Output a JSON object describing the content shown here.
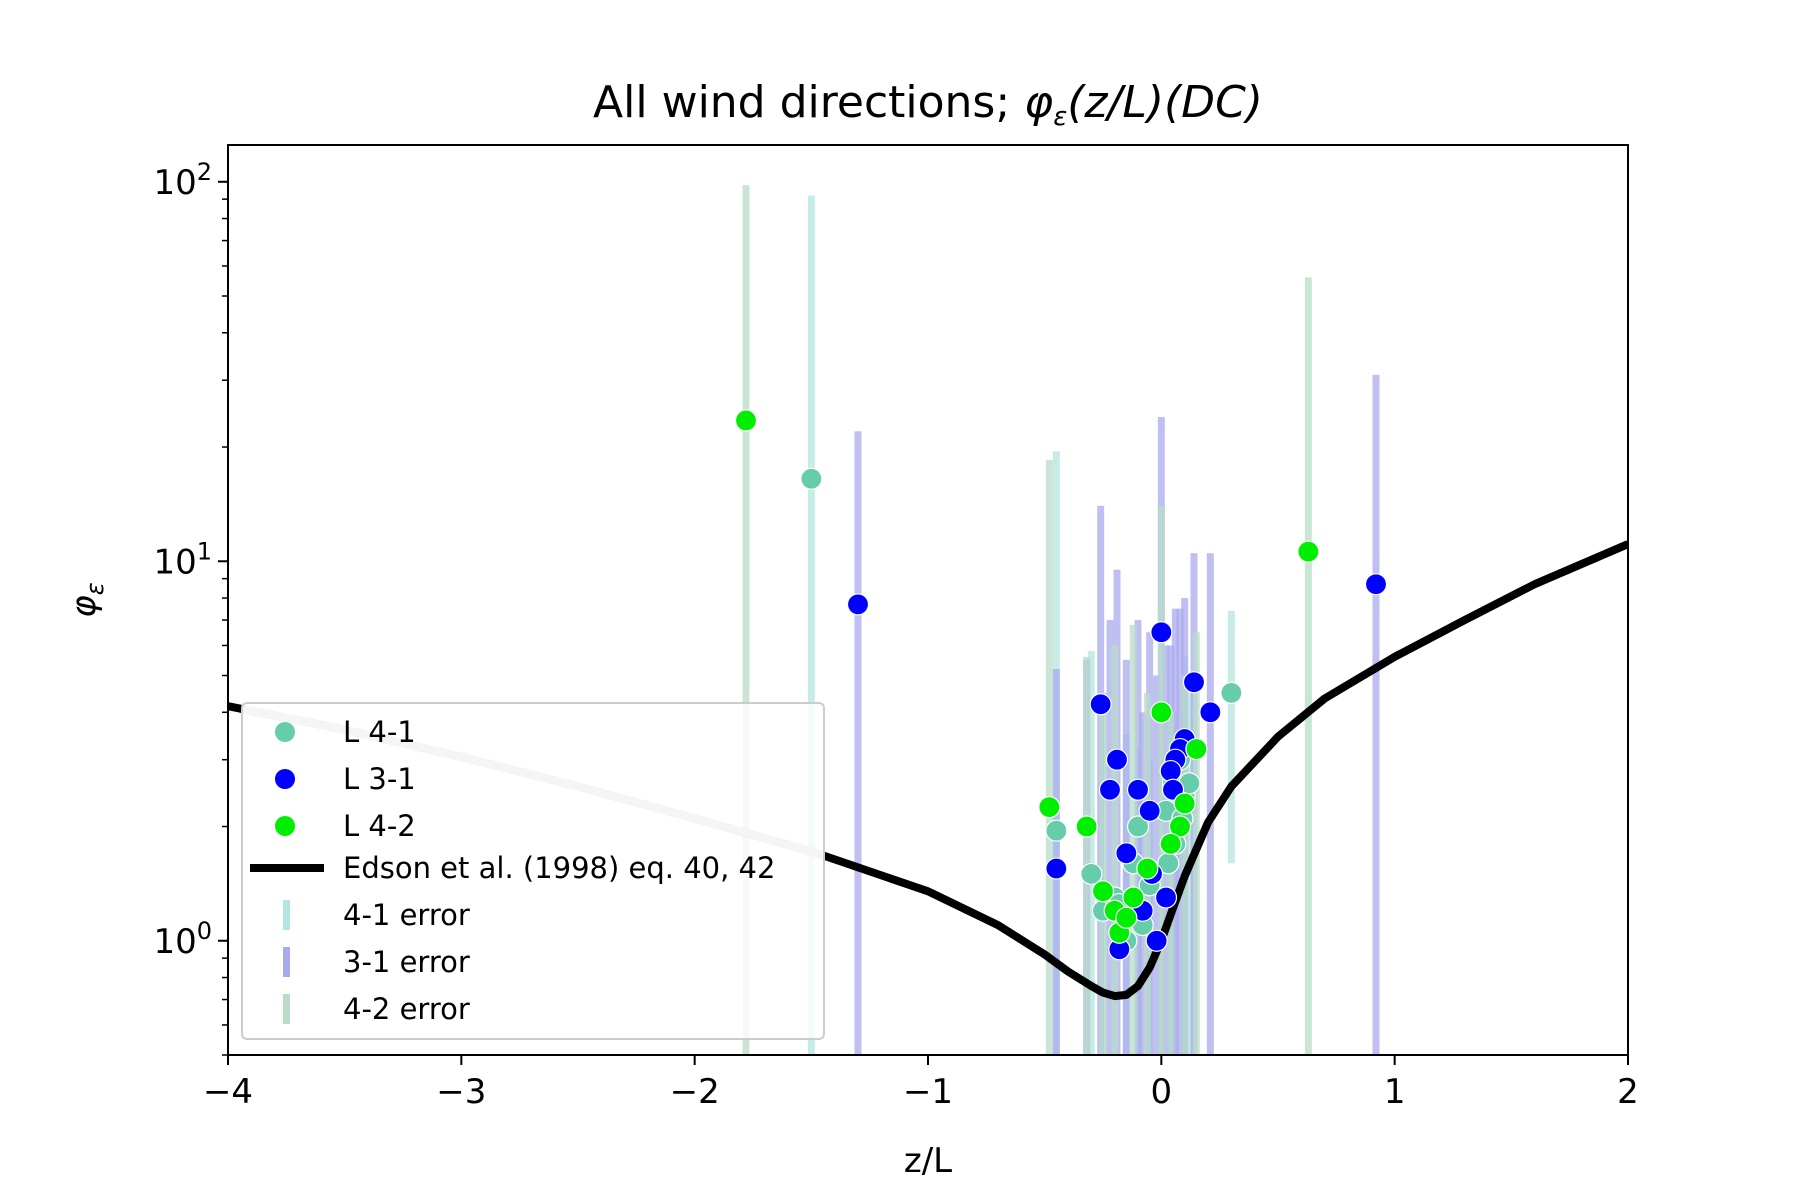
{
  "chart_data": {
    "type": "scatter",
    "title": "All wind directions; ",
    "title_math": "φ",
    "title_math_sub": "ε",
    "title_math_rest": "(z/L)(DC)",
    "xlabel": "z/L",
    "ylabel": "φ",
    "ylabel_sub": "ε",
    "xlim": [
      -4,
      2
    ],
    "ylim": [
      0.5,
      125
    ],
    "yscale": "log",
    "x_ticks": [
      {
        "value": -4,
        "label": "−4"
      },
      {
        "value": -3,
        "label": "−3"
      },
      {
        "value": -2,
        "label": "−2"
      },
      {
        "value": -1,
        "label": "−1"
      },
      {
        "value": 0,
        "label": "0"
      },
      {
        "value": 1,
        "label": "1"
      },
      {
        "value": 2,
        "label": "2"
      }
    ],
    "y_ticks": [
      {
        "value": 1,
        "base": "10",
        "exp": "0"
      },
      {
        "value": 10,
        "base": "10",
        "exp": "1"
      },
      {
        "value": 100,
        "base": "10",
        "exp": "2"
      }
    ],
    "grid": false,
    "legend_placement": "lower-left",
    "series": [
      {
        "name": "L 4-1",
        "color": "#66cdaa",
        "points": [
          [
            -1.5,
            16.5
          ],
          [
            0.3,
            4.5
          ],
          [
            -0.45,
            1.95
          ],
          [
            -0.3,
            1.5
          ],
          [
            -0.25,
            1.2
          ],
          [
            -0.2,
            1.3
          ],
          [
            -0.15,
            1.0
          ],
          [
            -0.1,
            2.0
          ],
          [
            -0.08,
            1.1
          ],
          [
            -0.05,
            1.4
          ],
          [
            0.02,
            2.2
          ],
          [
            0.05,
            2.6
          ],
          [
            0.08,
            3.0
          ],
          [
            0.1,
            2.4
          ],
          [
            0.12,
            2.6
          ],
          [
            0.06,
            1.8
          ],
          [
            0.03,
            1.6
          ],
          [
            -0.12,
            1.6
          ],
          [
            -0.18,
            1.25
          ],
          [
            0.09,
            2.1
          ]
        ]
      },
      {
        "name": "L 3-1",
        "color": "#0000ff",
        "points": [
          [
            -1.3,
            7.7
          ],
          [
            0.92,
            8.7
          ],
          [
            0.0,
            6.5
          ],
          [
            0.14,
            4.8
          ],
          [
            0.21,
            4.0
          ],
          [
            -0.26,
            4.2
          ],
          [
            -0.19,
            3.0
          ],
          [
            -0.22,
            2.5
          ],
          [
            -0.1,
            2.5
          ],
          [
            -0.45,
            1.55
          ],
          [
            -0.15,
            1.7
          ],
          [
            0.1,
            3.4
          ],
          [
            0.08,
            3.2
          ],
          [
            0.06,
            3.0
          ],
          [
            0.04,
            2.8
          ],
          [
            -0.05,
            2.2
          ],
          [
            -0.18,
            0.95
          ],
          [
            -0.02,
            1.0
          ],
          [
            0.02,
            1.3
          ],
          [
            -0.08,
            1.2
          ],
          [
            0.05,
            2.5
          ],
          [
            -0.04,
            1.5
          ]
        ]
      },
      {
        "name": "L 4-2",
        "color": "#00ee00",
        "points": [
          [
            -1.78,
            23.5
          ],
          [
            0.63,
            10.6
          ],
          [
            -0.48,
            2.25
          ],
          [
            -0.32,
            2.0
          ],
          [
            0.0,
            4.0
          ],
          [
            0.15,
            3.2
          ],
          [
            -0.25,
            1.35
          ],
          [
            -0.2,
            1.2
          ],
          [
            -0.18,
            1.05
          ],
          [
            -0.12,
            1.3
          ],
          [
            0.1,
            2.3
          ],
          [
            0.08,
            2.0
          ],
          [
            -0.06,
            1.55
          ],
          [
            0.04,
            1.8
          ],
          [
            -0.15,
            1.15
          ]
        ]
      }
    ],
    "error_bars": [
      {
        "name": "4-1 error",
        "color": "#b3e6e0",
        "bars": [
          [
            -1.5,
            0.5,
            92
          ],
          [
            0.3,
            1.6,
            7.4
          ],
          [
            -0.45,
            0.5,
            19.5
          ],
          [
            -0.3,
            0.5,
            5.8
          ],
          [
            -0.25,
            0.5,
            4.5
          ],
          [
            -0.15,
            0.5,
            3.5
          ],
          [
            -0.1,
            0.5,
            3.2
          ],
          [
            0.05,
            0.5,
            4.0
          ],
          [
            0.1,
            0.5,
            5.6
          ],
          [
            0.12,
            0.5,
            4.5
          ],
          [
            -0.05,
            0.5,
            3.0
          ]
        ]
      },
      {
        "name": "3-1 error",
        "color": "#a9a9ee",
        "bars": [
          [
            -1.3,
            0.5,
            22
          ],
          [
            0.92,
            0.5,
            31
          ],
          [
            0.0,
            0.5,
            24
          ],
          [
            -0.26,
            0.5,
            14
          ],
          [
            -0.19,
            0.5,
            9.5
          ],
          [
            0.14,
            0.5,
            10.5
          ],
          [
            0.21,
            0.5,
            10.5
          ],
          [
            -0.45,
            0.5,
            5.2
          ],
          [
            -0.1,
            0.5,
            7.0
          ],
          [
            -0.22,
            0.5,
            7.0
          ],
          [
            0.1,
            0.5,
            8.0
          ],
          [
            0.08,
            0.5,
            7.5
          ],
          [
            0.06,
            0.5,
            7.5
          ],
          [
            0.04,
            0.5,
            6.0
          ],
          [
            -0.05,
            0.5,
            6.5
          ],
          [
            -0.15,
            0.5,
            5.5
          ],
          [
            -0.02,
            0.5,
            5.0
          ],
          [
            0.02,
            0.5,
            6.0
          ],
          [
            -0.08,
            0.5,
            4.0
          ],
          [
            -0.32,
            0.5,
            5.5
          ]
        ]
      },
      {
        "name": "4-2 error",
        "color": "#b8dcc8",
        "bars": [
          [
            -1.78,
            0.5,
            98
          ],
          [
            0.63,
            0.5,
            56
          ],
          [
            -0.48,
            0.5,
            18.5
          ],
          [
            -0.32,
            0.5,
            5.6
          ],
          [
            0.0,
            0.5,
            14
          ],
          [
            0.15,
            0.5,
            6.5
          ],
          [
            -0.25,
            0.5,
            4.5
          ],
          [
            -0.2,
            0.5,
            6.0
          ],
          [
            -0.12,
            0.5,
            6.8
          ],
          [
            0.1,
            0.5,
            5.0
          ],
          [
            -0.06,
            0.5,
            4.5
          ],
          [
            0.04,
            0.5,
            4.0
          ]
        ]
      }
    ],
    "line": {
      "name": "Edson et al. (1998) eq. 40, 42",
      "color": "#000000",
      "points": [
        [
          -4.0,
          4.15
        ],
        [
          -3.5,
          3.6
        ],
        [
          -3.0,
          3.05
        ],
        [
          -2.5,
          2.55
        ],
        [
          -2.0,
          2.1
        ],
        [
          -1.5,
          1.72
        ],
        [
          -1.0,
          1.35
        ],
        [
          -0.7,
          1.1
        ],
        [
          -0.5,
          0.92
        ],
        [
          -0.4,
          0.83
        ],
        [
          -0.3,
          0.76
        ],
        [
          -0.25,
          0.73
        ],
        [
          -0.2,
          0.715
        ],
        [
          -0.15,
          0.72
        ],
        [
          -0.1,
          0.76
        ],
        [
          -0.05,
          0.85
        ],
        [
          0.0,
          1.0
        ],
        [
          0.05,
          1.22
        ],
        [
          0.1,
          1.48
        ],
        [
          0.2,
          2.05
        ],
        [
          0.3,
          2.55
        ],
        [
          0.5,
          3.45
        ],
        [
          0.7,
          4.35
        ],
        [
          1.0,
          5.6
        ],
        [
          1.3,
          7.0
        ],
        [
          1.6,
          8.7
        ],
        [
          2.0,
          11.1
        ]
      ]
    }
  }
}
